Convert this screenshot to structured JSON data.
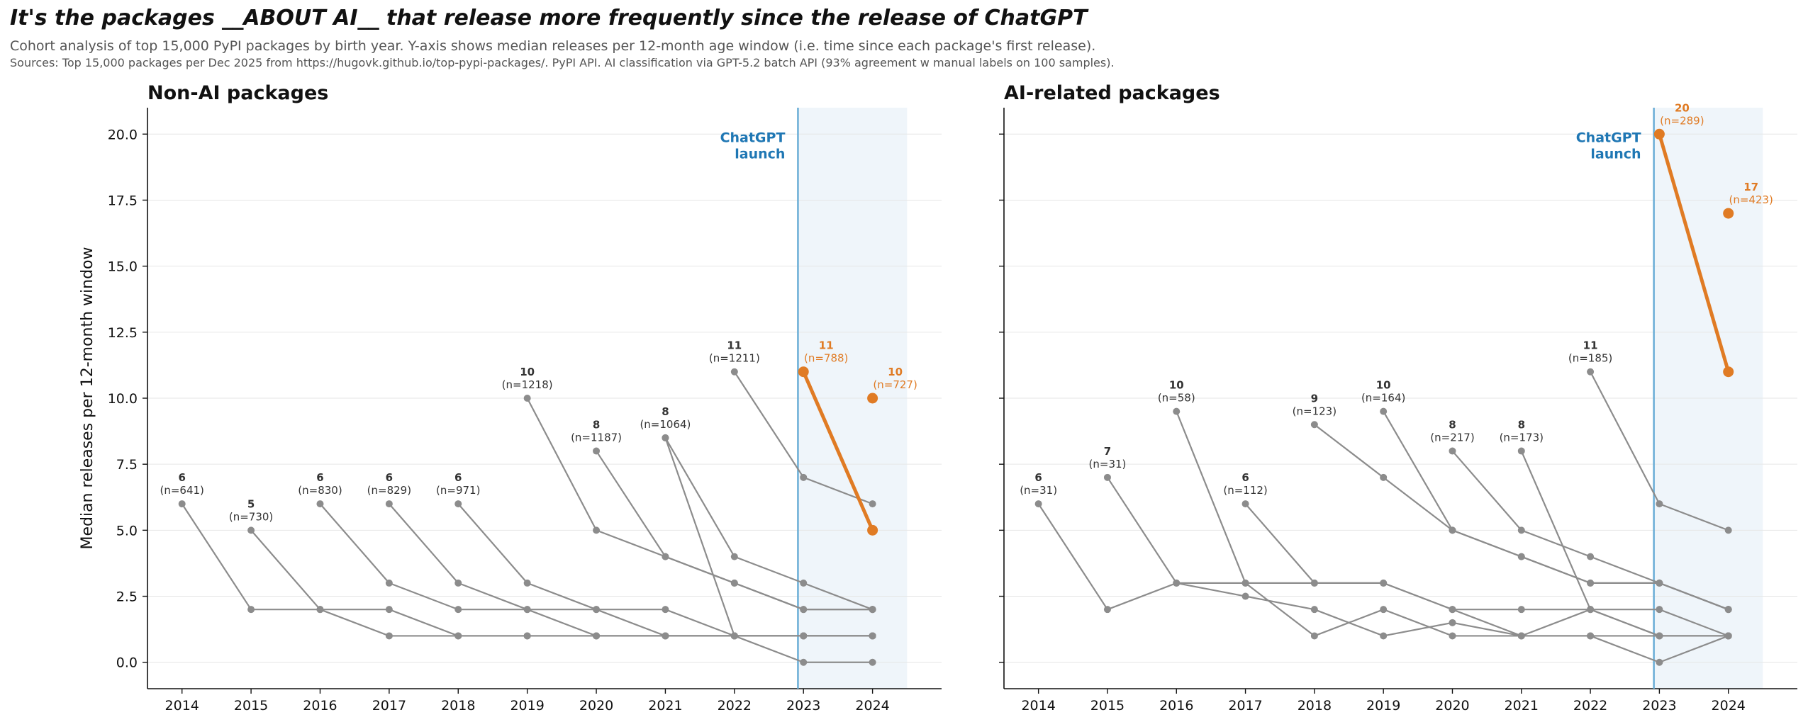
{
  "title": "It's the packages __ABOUT AI__ that release more frequently since the release of ChatGPT",
  "subtitle": "Cohort analysis of top 15,000 PyPI packages by birth year. Y-axis shows median releases per 12-month age window (i.e. time since each package's first release).",
  "sources": "Sources: Top 15,000 packages per Dec 2025 from https://hugovk.github.io/top-pypi-packages/. PyPI API. AI classification via GPT-5.2 batch API (93% agreement w manual labels on 100 samples).",
  "colors": {
    "grey_line": "#8c8c8c",
    "highlight": "#e07b24",
    "launch_line": "#6aaed6",
    "launch_text": "#1f77b4",
    "shade": "#eaf2f8"
  },
  "chart_data": [
    {
      "type": "line",
      "title": "Non-AI packages",
      "ylabel": "Median releases per 12-month window",
      "xlabel": "",
      "x_ticks": [
        "2014",
        "2015",
        "2016",
        "2017",
        "2018",
        "2019",
        "2020",
        "2021",
        "2022",
        "2023",
        "2024"
      ],
      "y_ticks": [
        "0.0",
        "2.5",
        "5.0",
        "7.5",
        "10.0",
        "12.5",
        "15.0",
        "17.5",
        "20.0"
      ],
      "ylim": [
        -1,
        21
      ],
      "xlim": [
        2013.5,
        2025.0
      ],
      "grid": "horizontal",
      "annotation": {
        "label": "ChatGPT\nlaunch",
        "x": 2022.92,
        "shaded_until": 2024.5
      },
      "series": [
        {
          "birth_year": 2014,
          "highlight": false,
          "label_value": "6",
          "label_n": "(n=641)",
          "points": [
            [
              2014,
              6
            ],
            [
              2015,
              2
            ],
            [
              2016,
              2
            ],
            [
              2017,
              1
            ],
            [
              2018,
              1
            ],
            [
              2019,
              1
            ],
            [
              2020,
              1
            ],
            [
              2021,
              1
            ],
            [
              2022,
              1
            ],
            [
              2023,
              1
            ],
            [
              2024,
              1
            ]
          ]
        },
        {
          "birth_year": 2015,
          "highlight": false,
          "label_value": "5",
          "label_n": "(n=730)",
          "points": [
            [
              2015,
              5
            ],
            [
              2016,
              2
            ],
            [
              2017,
              2
            ],
            [
              2018,
              1
            ],
            [
              2019,
              1
            ],
            [
              2020,
              1
            ],
            [
              2021,
              1
            ],
            [
              2022,
              1
            ],
            [
              2023,
              1
            ],
            [
              2024,
              1
            ]
          ]
        },
        {
          "birth_year": 2016,
          "highlight": false,
          "label_value": "6",
          "label_n": "(n=830)",
          "points": [
            [
              2016,
              6
            ],
            [
              2017,
              3
            ],
            [
              2018,
              2
            ],
            [
              2019,
              2
            ],
            [
              2020,
              2
            ],
            [
              2021,
              2
            ],
            [
              2022,
              1
            ],
            [
              2023,
              1
            ],
            [
              2024,
              1
            ]
          ]
        },
        {
          "birth_year": 2017,
          "highlight": false,
          "label_value": "6",
          "label_n": "(n=829)",
          "points": [
            [
              2017,
              6
            ],
            [
              2018,
              3
            ],
            [
              2019,
              2
            ],
            [
              2020,
              1
            ],
            [
              2021,
              1
            ],
            [
              2022,
              1
            ],
            [
              2023,
              1
            ],
            [
              2024,
              1
            ]
          ]
        },
        {
          "birth_year": 2018,
          "highlight": false,
          "label_value": "6",
          "label_n": "(n=971)",
          "points": [
            [
              2018,
              6
            ],
            [
              2019,
              3
            ],
            [
              2020,
              2
            ],
            [
              2021,
              1
            ],
            [
              2022,
              1
            ],
            [
              2023,
              1
            ],
            [
              2024,
              1
            ]
          ]
        },
        {
          "birth_year": 2019,
          "highlight": false,
          "label_value": "10",
          "label_n": "(n=1218)",
          "points": [
            [
              2019,
              10
            ],
            [
              2020,
              5
            ],
            [
              2021,
              4
            ],
            [
              2022,
              3
            ],
            [
              2023,
              2
            ],
            [
              2024,
              2
            ]
          ]
        },
        {
          "birth_year": 2020,
          "highlight": false,
          "label_value": "8",
          "label_n": "(n=1187)",
          "points": [
            [
              2020,
              8
            ],
            [
              2021,
              4
            ],
            [
              2022,
              3
            ],
            [
              2023,
              2
            ],
            [
              2024,
              2
            ]
          ]
        },
        {
          "birth_year": 2021,
          "highlight": false,
          "label_value": "8",
          "label_n": "(n=1064)",
          "points": [
            [
              2021,
              8.5
            ],
            [
              2022,
              1
            ],
            [
              2023,
              0
            ],
            [
              2024,
              0
            ]
          ]
        },
        {
          "birth_year": 2022,
          "highlight": false,
          "label_value": "11",
          "label_n": "(n=1211)",
          "points": [
            [
              2022,
              11
            ],
            [
              2023,
              7
            ],
            [
              2024,
              6
            ]
          ]
        },
        {
          "birth_year": 2023,
          "highlight": true,
          "label_value": "11",
          "label_n": "(n=788)",
          "points": [
            [
              2023,
              11
            ],
            [
              2024,
              5
            ]
          ]
        },
        {
          "birth_year": 2024,
          "highlight": true,
          "label_value": "10",
          "label_n": "(n=727)",
          "points": [
            [
              2024,
              10
            ]
          ]
        }
      ],
      "extra_segments": [
        [
          [
            2021,
            8.5
          ],
          [
            2022,
            4
          ],
          [
            2023,
            3
          ],
          [
            2024,
            2
          ]
        ]
      ]
    },
    {
      "type": "line",
      "title": "AI-related packages",
      "ylabel": "",
      "xlabel": "",
      "x_ticks": [
        "2014",
        "2015",
        "2016",
        "2017",
        "2018",
        "2019",
        "2020",
        "2021",
        "2022",
        "2023",
        "2024"
      ],
      "ylim": [
        -1,
        21
      ],
      "xlim": [
        2013.5,
        2025.0
      ],
      "grid": "horizontal",
      "annotation": {
        "label": "ChatGPT\nlaunch",
        "x": 2022.92,
        "shaded_until": 2024.5
      },
      "series": [
        {
          "birth_year": 2014,
          "highlight": false,
          "label_value": "6",
          "label_n": "(n=31)",
          "points": [
            [
              2014,
              6
            ],
            [
              2015,
              2
            ],
            [
              2016,
              3
            ],
            [
              2017,
              3
            ],
            [
              2018,
              3
            ],
            [
              2019,
              3
            ],
            [
              2020,
              2
            ],
            [
              2021,
              1
            ],
            [
              2022,
              1
            ],
            [
              2023,
              1
            ],
            [
              2024,
              1
            ]
          ]
        },
        {
          "birth_year": 2015,
          "highlight": false,
          "label_value": "7",
          "label_n": "(n=31)",
          "points": [
            [
              2015,
              7
            ],
            [
              2016,
              3
            ],
            [
              2017,
              2.5
            ],
            [
              2018,
              2
            ],
            [
              2019,
              1
            ],
            [
              2020,
              1.5
            ],
            [
              2021,
              1
            ],
            [
              2022,
              2
            ],
            [
              2023,
              1
            ],
            [
              2024,
              1
            ]
          ]
        },
        {
          "birth_year": 2016,
          "highlight": false,
          "label_value": "10",
          "label_n": "(n=58)",
          "points": [
            [
              2016,
              9.5
            ],
            [
              2017,
              3
            ],
            [
              2018,
              1
            ],
            [
              2019,
              2
            ],
            [
              2020,
              1
            ],
            [
              2021,
              1
            ],
            [
              2022,
              1
            ],
            [
              2023,
              0
            ],
            [
              2024,
              1
            ]
          ]
        },
        {
          "birth_year": 2017,
          "highlight": false,
          "label_value": "6",
          "label_n": "(n=112)",
          "points": [
            [
              2017,
              6
            ],
            [
              2018,
              3
            ],
            [
              2019,
              3
            ],
            [
              2020,
              2
            ],
            [
              2021,
              2
            ],
            [
              2022,
              2
            ],
            [
              2023,
              2
            ],
            [
              2024,
              1
            ]
          ]
        },
        {
          "birth_year": 2018,
          "highlight": false,
          "label_value": "9",
          "label_n": "(n=123)",
          "points": [
            [
              2018,
              9
            ],
            [
              2019,
              7
            ],
            [
              2020,
              5
            ],
            [
              2021,
              4
            ],
            [
              2022,
              3
            ],
            [
              2023,
              3
            ],
            [
              2024,
              2
            ]
          ]
        },
        {
          "birth_year": 2019,
          "highlight": false,
          "label_value": "10",
          "label_n": "(n=164)",
          "points": [
            [
              2019,
              9.5
            ],
            [
              2020,
              5
            ],
            [
              2021,
              4
            ],
            [
              2022,
              3
            ],
            [
              2023,
              3
            ],
            [
              2024,
              2
            ]
          ]
        },
        {
          "birth_year": 2020,
          "highlight": false,
          "label_value": "8",
          "label_n": "(n=217)",
          "points": [
            [
              2020,
              8
            ],
            [
              2021,
              5
            ],
            [
              2022,
              4
            ],
            [
              2023,
              3
            ],
            [
              2024,
              2
            ]
          ]
        },
        {
          "birth_year": 2021,
          "highlight": false,
          "label_value": "8",
          "label_n": "(n=173)",
          "points": [
            [
              2021,
              8
            ],
            [
              2022,
              2
            ],
            [
              2023,
              1
            ],
            [
              2024,
              1
            ]
          ]
        },
        {
          "birth_year": 2022,
          "highlight": false,
          "label_value": "11",
          "label_n": "(n=185)",
          "points": [
            [
              2022,
              11
            ],
            [
              2023,
              6
            ],
            [
              2024,
              5
            ]
          ]
        },
        {
          "birth_year": 2023,
          "highlight": true,
          "label_value": "20",
          "label_n": "(n=289)",
          "points": [
            [
              2023,
              20
            ],
            [
              2024,
              11
            ]
          ]
        },
        {
          "birth_year": 2024,
          "highlight": true,
          "label_value": "17",
          "label_n": "(n=423)",
          "points": [
            [
              2024,
              17
            ]
          ]
        }
      ],
      "extra_segments": []
    }
  ]
}
